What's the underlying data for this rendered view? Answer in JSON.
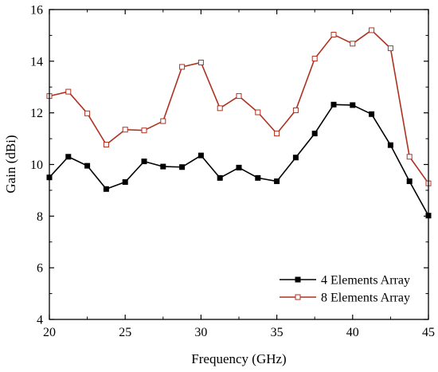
{
  "chart_data": {
    "type": "line",
    "title": "",
    "xlabel": "Frequency (GHz)",
    "ylabel": "Gain (dBi)",
    "xlim": [
      20,
      45
    ],
    "ylim": [
      4,
      16
    ],
    "xticks": [
      20,
      25,
      30,
      35,
      40,
      45
    ],
    "yticks": [
      4,
      6,
      8,
      10,
      12,
      14,
      16
    ],
    "grid": false,
    "legend_position": "bottom-right",
    "series": [
      {
        "name": "4 Elements Array",
        "color": "#000000",
        "marker": "filled-square",
        "x": [
          20,
          21.25,
          22.5,
          23.75,
          25,
          26.25,
          27.5,
          28.75,
          30,
          31.25,
          32.5,
          33.75,
          35,
          36.25,
          37.5,
          38.75,
          40,
          41.25,
          42.5,
          43.75,
          45
        ],
        "y": [
          9.5,
          10.3,
          9.95,
          9.05,
          9.32,
          10.12,
          9.92,
          9.9,
          10.35,
          9.48,
          9.88,
          9.48,
          9.35,
          10.27,
          11.2,
          12.32,
          12.3,
          11.95,
          10.75,
          9.35,
          8.02
        ]
      },
      {
        "name": "8 Elements Array",
        "color": "#b03020",
        "marker": "open-square",
        "x": [
          20,
          21.25,
          22.5,
          23.75,
          25,
          26.25,
          27.5,
          28.75,
          30,
          31.25,
          32.5,
          33.75,
          35,
          36.25,
          37.5,
          38.75,
          40,
          41.25,
          42.5,
          43.75,
          45
        ],
        "y": [
          12.65,
          12.82,
          11.98,
          10.77,
          11.35,
          11.32,
          11.68,
          13.78,
          13.95,
          12.18,
          12.65,
          12.02,
          11.2,
          12.1,
          14.1,
          15.03,
          14.68,
          15.2,
          14.5,
          10.3,
          9.27
        ]
      }
    ]
  }
}
